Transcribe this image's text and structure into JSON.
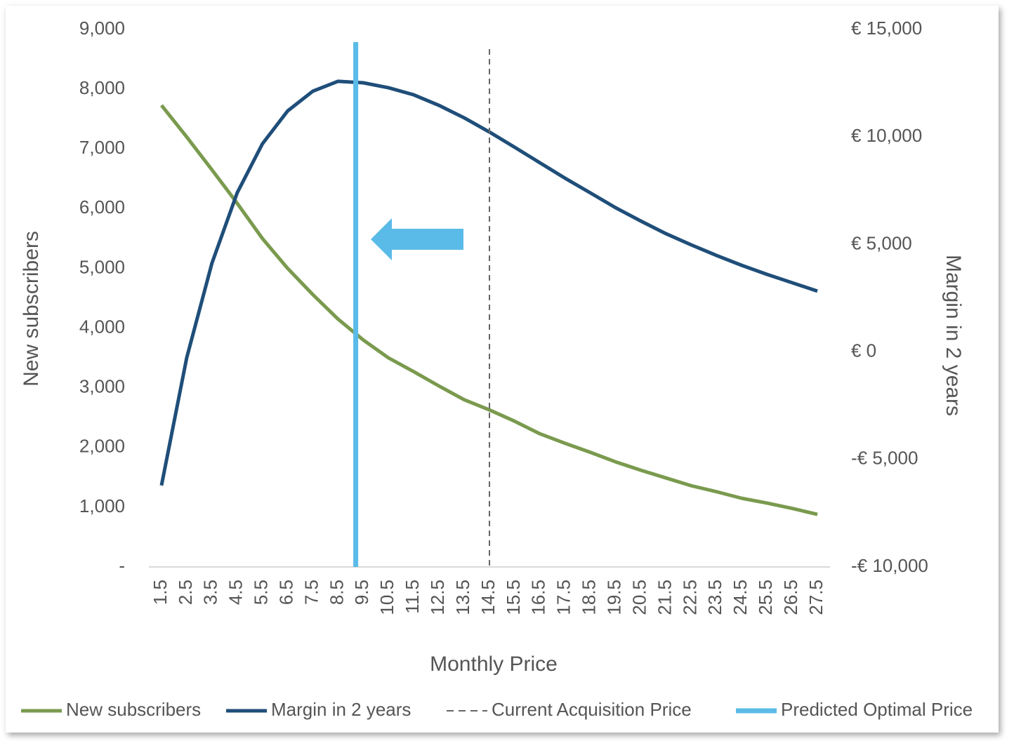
{
  "chart_data": {
    "type": "line",
    "x_label": "Monthly Price",
    "y_label": "New subscribers",
    "y2_label": "Margin in 2 years",
    "x": [
      1.5,
      2.5,
      3.5,
      4.5,
      5.5,
      6.5,
      7.5,
      8.5,
      9.5,
      10.5,
      11.5,
      12.5,
      13.5,
      14.5,
      15.5,
      16.5,
      17.5,
      18.5,
      19.5,
      20.5,
      21.5,
      22.5,
      23.5,
      24.5,
      25.5,
      26.5,
      27.5
    ],
    "xlim": [
      1.0,
      28.0
    ],
    "xticks": [
      1.5,
      2.5,
      3.5,
      4.5,
      5.5,
      6.5,
      7.5,
      8.5,
      9.5,
      10.5,
      11.5,
      12.5,
      13.5,
      14.5,
      15.5,
      16.5,
      17.5,
      18.5,
      19.5,
      20.5,
      21.5,
      22.5,
      23.5,
      24.5,
      25.5,
      26.5,
      27.5
    ],
    "ylim": [
      0,
      9000
    ],
    "yticks": [
      {
        "value": 0,
        "label": "-"
      },
      {
        "value": 1000,
        "label": "1,000"
      },
      {
        "value": 2000,
        "label": "2,000"
      },
      {
        "value": 3000,
        "label": "3,000"
      },
      {
        "value": 4000,
        "label": "4,000"
      },
      {
        "value": 5000,
        "label": "5,000"
      },
      {
        "value": 6000,
        "label": "6,000"
      },
      {
        "value": 7000,
        "label": "7,000"
      },
      {
        "value": 8000,
        "label": "8,000"
      },
      {
        "value": 9000,
        "label": "9,000"
      }
    ],
    "y2lim": [
      -10000,
      15000
    ],
    "y2ticks": [
      {
        "value": -10000,
        "label": "-€ 10,000"
      },
      {
        "value": -5000,
        "label": "-€ 5,000"
      },
      {
        "value": 0,
        "label": "€ 0"
      },
      {
        "value": 5000,
        "label": "€ 5,000"
      },
      {
        "value": 10000,
        "label": "€ 10,000"
      },
      {
        "value": 15000,
        "label": "€ 15,000"
      }
    ],
    "series": [
      {
        "name": "New subscribers",
        "color": "#7a9a4e",
        "axis": "y",
        "values": [
          7730,
          7200,
          6650,
          6090,
          5500,
          5000,
          4560,
          4150,
          3800,
          3500,
          3270,
          3030,
          2800,
          2630,
          2440,
          2230,
          2070,
          1920,
          1760,
          1620,
          1490,
          1360,
          1260,
          1150,
          1070,
          980,
          880
        ]
      },
      {
        "name": "Margin in 2 years",
        "color": "#1f4e79",
        "axis": "y2",
        "values": [
          -6210,
          -270,
          4130,
          7400,
          9680,
          11210,
          12130,
          12590,
          12520,
          12290,
          11960,
          11470,
          10890,
          10230,
          9520,
          8800,
          8080,
          7400,
          6710,
          6090,
          5500,
          4980,
          4490,
          4030,
          3610,
          3220,
          2830
        ]
      }
    ],
    "vlines": [
      {
        "name": "Current Acquisition Price",
        "x": 14.5,
        "color": "#666666",
        "style": "dashed"
      },
      {
        "name": "Predicted Optimal Price",
        "x": 9.2,
        "color": "#5bbbe8",
        "style": "solid"
      }
    ]
  }
}
